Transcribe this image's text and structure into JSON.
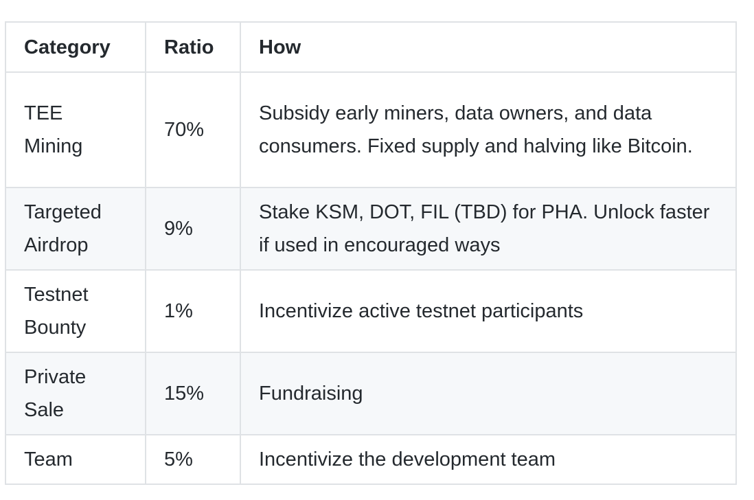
{
  "table": {
    "headers": [
      "Category",
      "Ratio",
      "How"
    ],
    "rows": [
      {
        "category": "TEE\nMining",
        "ratio": "70%",
        "how": "Subsidy early miners, data owners, and data consumers. Fixed supply and halving like Bitcoin."
      },
      {
        "category": "Targeted\nAirdrop",
        "ratio": "9%",
        "how": "Stake KSM, DOT, FIL (TBD) for PHA. Unlock faster if used in encouraged ways"
      },
      {
        "category": "Testnet\nBounty",
        "ratio": "1%",
        "how": "Incentivize active testnet participants"
      },
      {
        "category": "Private\nSale",
        "ratio": "15%",
        "how": "Fundraising"
      },
      {
        "category": "Team",
        "ratio": "5%",
        "how": "Incentivize the development team"
      }
    ]
  }
}
